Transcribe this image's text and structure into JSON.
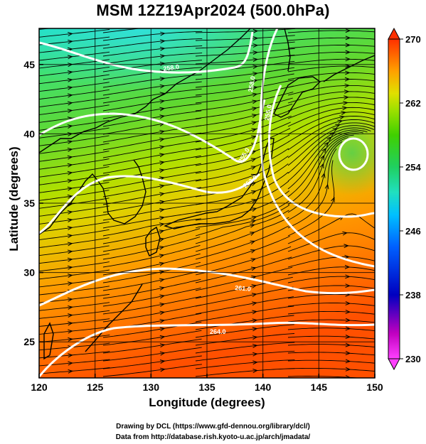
{
  "title": "MSM 12Z19Apr2024 (500.0hPa)",
  "x_axis": {
    "label": "Longitude (degrees)",
    "ticks": [
      "120",
      "125",
      "130",
      "135",
      "140",
      "145",
      "150"
    ],
    "range": [
      120,
      150
    ]
  },
  "y_axis": {
    "label": "Latitude  (degrees)",
    "ticks": [
      "25",
      "30",
      "35",
      "40",
      "45"
    ],
    "range": [
      22.4,
      47.6
    ]
  },
  "colorbar": {
    "ticks": [
      "230",
      "238",
      "246",
      "254",
      "262",
      "270"
    ],
    "range": [
      230,
      270
    ],
    "colors": [
      "#ff40ff",
      "#c000c0",
      "#0000c0",
      "#0060ff",
      "#00c0ff",
      "#20e0c0",
      "#20d060",
      "#40d000",
      "#a0e000",
      "#e0e000",
      "#ffa000",
      "#ff6000",
      "#ff2000"
    ]
  },
  "contour_labels": [
    "258.0",
    "255.0",
    "252.0",
    "255.0",
    "258.0",
    "261.0",
    "264.0"
  ],
  "credits": [
    "Drawing by DCL (https://www.gfd-dennou.org/library/dcl/)",
    "Data from http://database.rish.kyoto-u.ac.jp/arch/jmadata/"
  ]
}
